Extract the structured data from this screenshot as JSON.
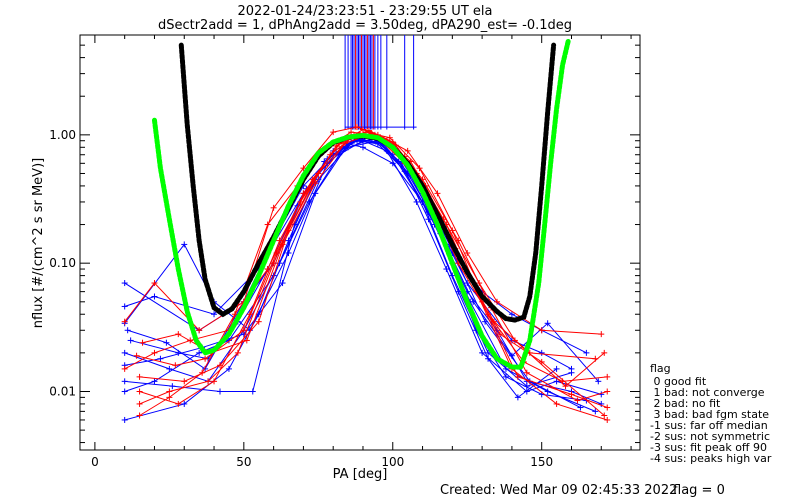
{
  "chart_data": {
    "type": "line",
    "title_line1": "2022-01-24/23:23:51 - 23:29:55 UT ela",
    "title_line2": "dSectr2add = 1, dPhAng2add = 3.50deg, dPA290_est=  -0.1deg",
    "xlabel": "PA [deg]",
    "ylabel": "nflux [#/(cm^2 s sr MeV)]",
    "xlim": [
      -5,
      183
    ],
    "ylim": [
      0.0035,
      6.0
    ],
    "yscale": "log",
    "x_ticks": [
      0,
      50,
      100,
      150
    ],
    "x_tick_labels": [
      "0",
      "50",
      "100",
      "150"
    ],
    "y_ticks": [
      0.01,
      0.1,
      1.0
    ],
    "y_tick_labels": [
      "0.01",
      "0.10",
      "1.00"
    ],
    "colors": {
      "blue": "#0000ff",
      "red": "#ff0000",
      "black_fit": "#000000",
      "green_fit": "#00ff00"
    },
    "black_fit_curve": {
      "x": [
        29,
        31,
        33,
        35,
        37,
        40,
        43,
        46,
        50,
        55,
        60,
        65,
        70,
        75,
        80,
        85,
        90,
        95,
        100,
        105,
        110,
        115,
        120,
        125,
        130,
        135,
        138,
        141,
        144,
        146,
        148,
        150,
        152,
        154
      ],
      "y": [
        5.0,
        1.2,
        0.4,
        0.15,
        0.075,
        0.045,
        0.04,
        0.044,
        0.06,
        0.1,
        0.16,
        0.27,
        0.45,
        0.68,
        0.87,
        0.96,
        0.98,
        0.94,
        0.8,
        0.6,
        0.4,
        0.24,
        0.14,
        0.085,
        0.055,
        0.042,
        0.037,
        0.036,
        0.038,
        0.055,
        0.12,
        0.4,
        1.5,
        5.0
      ]
    },
    "green_fit_curve": {
      "x": [
        20,
        22,
        25,
        28,
        31,
        34,
        37,
        40,
        45,
        50,
        55,
        60,
        65,
        70,
        75,
        80,
        85,
        90,
        95,
        100,
        105,
        110,
        115,
        120,
        125,
        130,
        135,
        140,
        143,
        146,
        149,
        151,
        153,
        155,
        157,
        159
      ],
      "y": [
        1.3,
        0.55,
        0.22,
        0.09,
        0.042,
        0.025,
        0.02,
        0.021,
        0.028,
        0.045,
        0.08,
        0.15,
        0.28,
        0.48,
        0.72,
        0.88,
        0.96,
        0.99,
        0.95,
        0.8,
        0.58,
        0.36,
        0.2,
        0.1,
        0.05,
        0.027,
        0.018,
        0.0155,
        0.0155,
        0.025,
        0.07,
        0.2,
        0.6,
        1.6,
        3.5,
        5.5
      ]
    },
    "vertical_lines_blue": [
      {
        "x": 84,
        "top": 6.0
      },
      {
        "x": 85,
        "top": 6.0
      },
      {
        "x": 86,
        "top": 6.0
      },
      {
        "x": 86.5,
        "top": 6.0
      },
      {
        "x": 87,
        "top": 6.0
      },
      {
        "x": 88,
        "top": 6.0
      },
      {
        "x": 88.5,
        "top": 6.0
      },
      {
        "x": 89,
        "top": 6.0
      },
      {
        "x": 90,
        "top": 6.0
      },
      {
        "x": 90.5,
        "top": 6.0
      },
      {
        "x": 91,
        "top": 6.0
      },
      {
        "x": 92,
        "top": 6.0
      },
      {
        "x": 92.5,
        "top": 6.0
      },
      {
        "x": 93,
        "top": 6.0
      },
      {
        "x": 94,
        "top": 6.0
      },
      {
        "x": 95,
        "top": 6.0
      },
      {
        "x": 96,
        "top": 6.0
      },
      {
        "x": 98,
        "top": 6.0
      },
      {
        "x": 104,
        "top": 6.0
      },
      {
        "x": 107,
        "top": 6.0
      }
    ],
    "vertical_lines_red": [
      {
        "x": 87.5,
        "top": 6.0
      },
      {
        "x": 89.5,
        "top": 6.0
      },
      {
        "x": 91.5,
        "top": 6.0
      },
      {
        "x": 93.5,
        "top": 6.0
      }
    ],
    "series_blue": [
      {
        "x": [
          10,
          35,
          50,
          60,
          70,
          80,
          85,
          90,
          100,
          110,
          120,
          130,
          140,
          150,
          165
        ],
        "y": [
          0.07,
          0.03,
          0.05,
          0.15,
          0.4,
          0.7,
          0.85,
          0.8,
          0.6,
          0.3,
          0.12,
          0.06,
          0.04,
          0.03,
          0.02
        ]
      },
      {
        "x": [
          10,
          20,
          40,
          55,
          70,
          80,
          88,
          95,
          105,
          115,
          125,
          140,
          150,
          160
        ],
        "y": [
          0.046,
          0.055,
          0.04,
          0.09,
          0.35,
          0.75,
          0.9,
          0.85,
          0.5,
          0.2,
          0.07,
          0.025,
          0.02,
          0.015
        ]
      },
      {
        "x": [
          10,
          25,
          38,
          50,
          62,
          75,
          85,
          95,
          100,
          112,
          125,
          135,
          145,
          160,
          170
        ],
        "y": [
          0.02,
          0.015,
          0.012,
          0.03,
          0.1,
          0.45,
          0.8,
          0.9,
          0.7,
          0.25,
          0.06,
          0.03,
          0.012,
          0.01,
          0.008
        ]
      },
      {
        "x": [
          10,
          20,
          35,
          45,
          60,
          72,
          82,
          90,
          98,
          108,
          118,
          130,
          145,
          155,
          170
        ],
        "y": [
          0.01,
          0.012,
          0.02,
          0.025,
          0.08,
          0.3,
          0.7,
          0.9,
          0.75,
          0.3,
          0.09,
          0.02,
          0.01,
          0.012,
          0.0095
        ]
      },
      {
        "x": [
          10,
          30,
          45,
          55,
          65,
          75,
          85,
          92,
          100,
          110,
          120,
          128,
          138,
          150,
          165
        ],
        "y": [
          0.006,
          0.008,
          0.015,
          0.04,
          0.15,
          0.5,
          0.85,
          0.95,
          0.8,
          0.35,
          0.1,
          0.03,
          0.013,
          0.0095,
          0.0085
        ]
      },
      {
        "x": [
          10,
          30,
          40,
          52,
          65,
          78,
          88,
          95,
          103,
          112,
          122,
          132,
          142,
          155
        ],
        "y": [
          0.034,
          0.14,
          0.05,
          0.03,
          0.12,
          0.6,
          0.92,
          0.88,
          0.6,
          0.22,
          0.06,
          0.018,
          0.009,
          0.015
        ]
      },
      {
        "x": [
          12,
          28,
          38,
          48,
          58,
          68,
          78,
          86,
          94,
          102,
          110,
          120,
          132,
          145,
          160
        ],
        "y": [
          0.025,
          0.02,
          0.018,
          0.035,
          0.09,
          0.28,
          0.65,
          0.88,
          0.92,
          0.62,
          0.3,
          0.08,
          0.02,
          0.011,
          0.014
        ]
      },
      {
        "x": [
          10,
          22,
          36,
          50,
          63,
          74,
          84,
          93,
          101,
          109,
          119,
          131,
          146,
          163
        ],
        "y": [
          0.016,
          0.018,
          0.022,
          0.028,
          0.07,
          0.35,
          0.78,
          0.93,
          0.78,
          0.4,
          0.14,
          0.035,
          0.012,
          0.0075
        ]
      },
      {
        "x": [
          10,
          26,
          42,
          53,
          67,
          77,
          87,
          96,
          104,
          114,
          126,
          138,
          152,
          168
        ],
        "y": [
          0.012,
          0.011,
          0.01,
          0.01,
          0.2,
          0.62,
          0.9,
          0.86,
          0.52,
          0.2,
          0.05,
          0.015,
          0.01,
          0.007
        ]
      },
      {
        "x": [
          11,
          24,
          37,
          50,
          60,
          71,
          81,
          89,
          97,
          106,
          116,
          127,
          140,
          152,
          169
        ],
        "y": [
          0.03,
          0.024,
          0.015,
          0.05,
          0.1,
          0.38,
          0.72,
          0.93,
          0.84,
          0.48,
          0.17,
          0.05,
          0.019,
          0.034,
          0.012
        ]
      }
    ],
    "series_red": [
      {
        "x": [
          10,
          20,
          35,
          50,
          60,
          70,
          80,
          88,
          95,
          105,
          115,
          125,
          135,
          150,
          170
        ],
        "y": [
          0.035,
          0.07,
          0.03,
          0.05,
          0.27,
          0.55,
          1.05,
          1.15,
          1.0,
          0.75,
          0.35,
          0.12,
          0.05,
          0.03,
          0.028
        ]
      },
      {
        "x": [
          10,
          20,
          32,
          45,
          58,
          68,
          78,
          86,
          94,
          104,
          114,
          124,
          134,
          146,
          168
        ],
        "y": [
          0.015,
          0.02,
          0.025,
          0.03,
          0.2,
          0.4,
          0.8,
          1.05,
          1.0,
          0.6,
          0.25,
          0.09,
          0.035,
          0.02,
          0.018
        ]
      },
      {
        "x": [
          15,
          25,
          38,
          48,
          60,
          70,
          82,
          90,
          98,
          108,
          118,
          128,
          140,
          155,
          172
        ],
        "y": [
          0.008,
          0.01,
          0.012,
          0.02,
          0.1,
          0.35,
          0.85,
          1.1,
          0.9,
          0.5,
          0.2,
          0.06,
          0.015,
          0.008,
          0.006
        ]
      },
      {
        "x": [
          15,
          28,
          40,
          52,
          62,
          73,
          83,
          91,
          99,
          109,
          120,
          130,
          142,
          160,
          172
        ],
        "y": [
          0.01,
          0.008,
          0.012,
          0.04,
          0.15,
          0.45,
          0.9,
          1.05,
          0.95,
          0.55,
          0.18,
          0.05,
          0.013,
          0.0095,
          0.0075
        ]
      },
      {
        "x": [
          14,
          27,
          37,
          50,
          61,
          72,
          81,
          89,
          97,
          106,
          117,
          129,
          141,
          158,
          171
        ],
        "y": [
          0.019,
          0.016,
          0.018,
          0.03,
          0.12,
          0.38,
          0.82,
          1.0,
          0.92,
          0.62,
          0.22,
          0.07,
          0.025,
          0.011,
          0.02
        ]
      },
      {
        "x": [
          15,
          30,
          42,
          55,
          65,
          75,
          85,
          92,
          100,
          110,
          122,
          133,
          145,
          162,
          172
        ],
        "y": [
          0.013,
          0.012,
          0.016,
          0.035,
          0.18,
          0.5,
          0.92,
          1.08,
          0.88,
          0.45,
          0.15,
          0.045,
          0.014,
          0.0085,
          0.01
        ]
      },
      {
        "x": [
          15,
          25,
          36,
          47,
          58,
          69,
          79,
          87,
          95,
          104,
          112,
          122,
          136,
          150,
          171
        ],
        "y": [
          0.0065,
          0.009,
          0.014,
          0.04,
          0.09,
          0.3,
          0.7,
          0.98,
          0.97,
          0.68,
          0.33,
          0.1,
          0.028,
          0.017,
          0.0065
        ]
      },
      {
        "x": [
          16,
          28,
          39,
          51,
          63,
          74,
          84,
          93,
          101,
          111,
          121,
          132,
          144,
          157,
          172
        ],
        "y": [
          0.024,
          0.028,
          0.02,
          0.025,
          0.14,
          0.42,
          0.86,
          1.02,
          0.83,
          0.4,
          0.13,
          0.04,
          0.017,
          0.012,
          0.013
        ]
      }
    ],
    "legend": {
      "heading": "flag",
      "entries": [
        " 0 good fit",
        " 1 bad: not converge",
        " 2 bad: no fit",
        " 3 bad: bad fgm state",
        "-1 sus: far off median",
        "-2 sus: not symmetric",
        "-3 sus: fit peak off 90",
        "-4 sus: peaks high var"
      ]
    },
    "footer_created": "Created: Wed Mar 09 02:45:33 2022",
    "footer_flag": "flag = 0"
  }
}
